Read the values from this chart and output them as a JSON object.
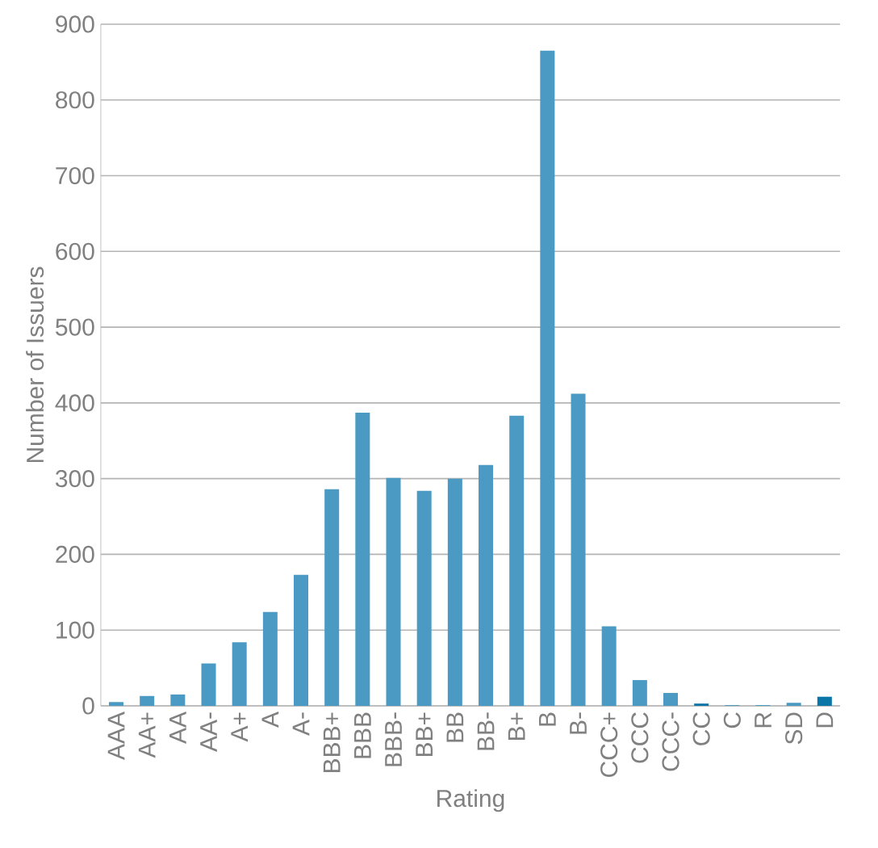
{
  "chart_data": {
    "type": "bar",
    "xlabel": "Rating",
    "ylabel": "Number of Issuers",
    "categories": [
      "AAA",
      "AA+",
      "AA",
      "AA-",
      "A+",
      "A",
      "A-",
      "BBB+",
      "BBB",
      "BBB-",
      "BB+",
      "BB",
      "BB-",
      "B+",
      "B",
      "B-",
      "CCC+",
      "CCC",
      "CCC-",
      "CC",
      "C",
      "R",
      "SD",
      "D"
    ],
    "values": [
      5,
      13,
      15,
      56,
      84,
      124,
      173,
      286,
      387,
      301,
      284,
      300,
      318,
      383,
      865,
      412,
      105,
      34,
      17,
      3,
      1,
      1,
      4,
      12
    ],
    "colors": [
      "#4a9ac4",
      "#4a9ac4",
      "#4a9ac4",
      "#4a9ac4",
      "#4a9ac4",
      "#4a9ac4",
      "#4a9ac4",
      "#4a9ac4",
      "#4a9ac4",
      "#4a9ac4",
      "#4a9ac4",
      "#4a9ac4",
      "#4a9ac4",
      "#4a9ac4",
      "#4a9ac4",
      "#4a9ac4",
      "#4a9ac4",
      "#4a9ac4",
      "#4a9ac4",
      "#0a76a8",
      "#4a9ac4",
      "#4a9ac4",
      "#4a9ac4",
      "#0a76a8"
    ],
    "ylim": [
      0,
      900
    ],
    "yticks": [
      0,
      100,
      200,
      300,
      400,
      500,
      600,
      700,
      800,
      900
    ],
    "grid": "y"
  }
}
